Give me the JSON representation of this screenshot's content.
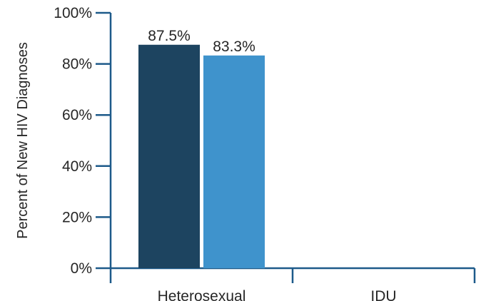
{
  "chart_data": {
    "type": "bar",
    "categories": [
      "Heterosexual",
      "IDU"
    ],
    "series": [
      {
        "values": [
          87.5,
          null
        ],
        "labels": [
          "87.5%",
          ""
        ],
        "color": "#1d4460"
      },
      {
        "values": [
          83.3,
          null
        ],
        "labels": [
          "83.3%",
          ""
        ],
        "color": "#3f93cc"
      }
    ],
    "xlabel": "",
    "ylabel": "Percent of New HIV Diagnoses",
    "ylim": [
      0,
      100
    ],
    "yticks": [
      0,
      20,
      40,
      60,
      80,
      100
    ],
    "ytick_labels": [
      "0%",
      "20%",
      "40%",
      "60%",
      "80%",
      "100%"
    ],
    "axis_color": "#1d5a8a",
    "grid": false,
    "legend": "none"
  }
}
